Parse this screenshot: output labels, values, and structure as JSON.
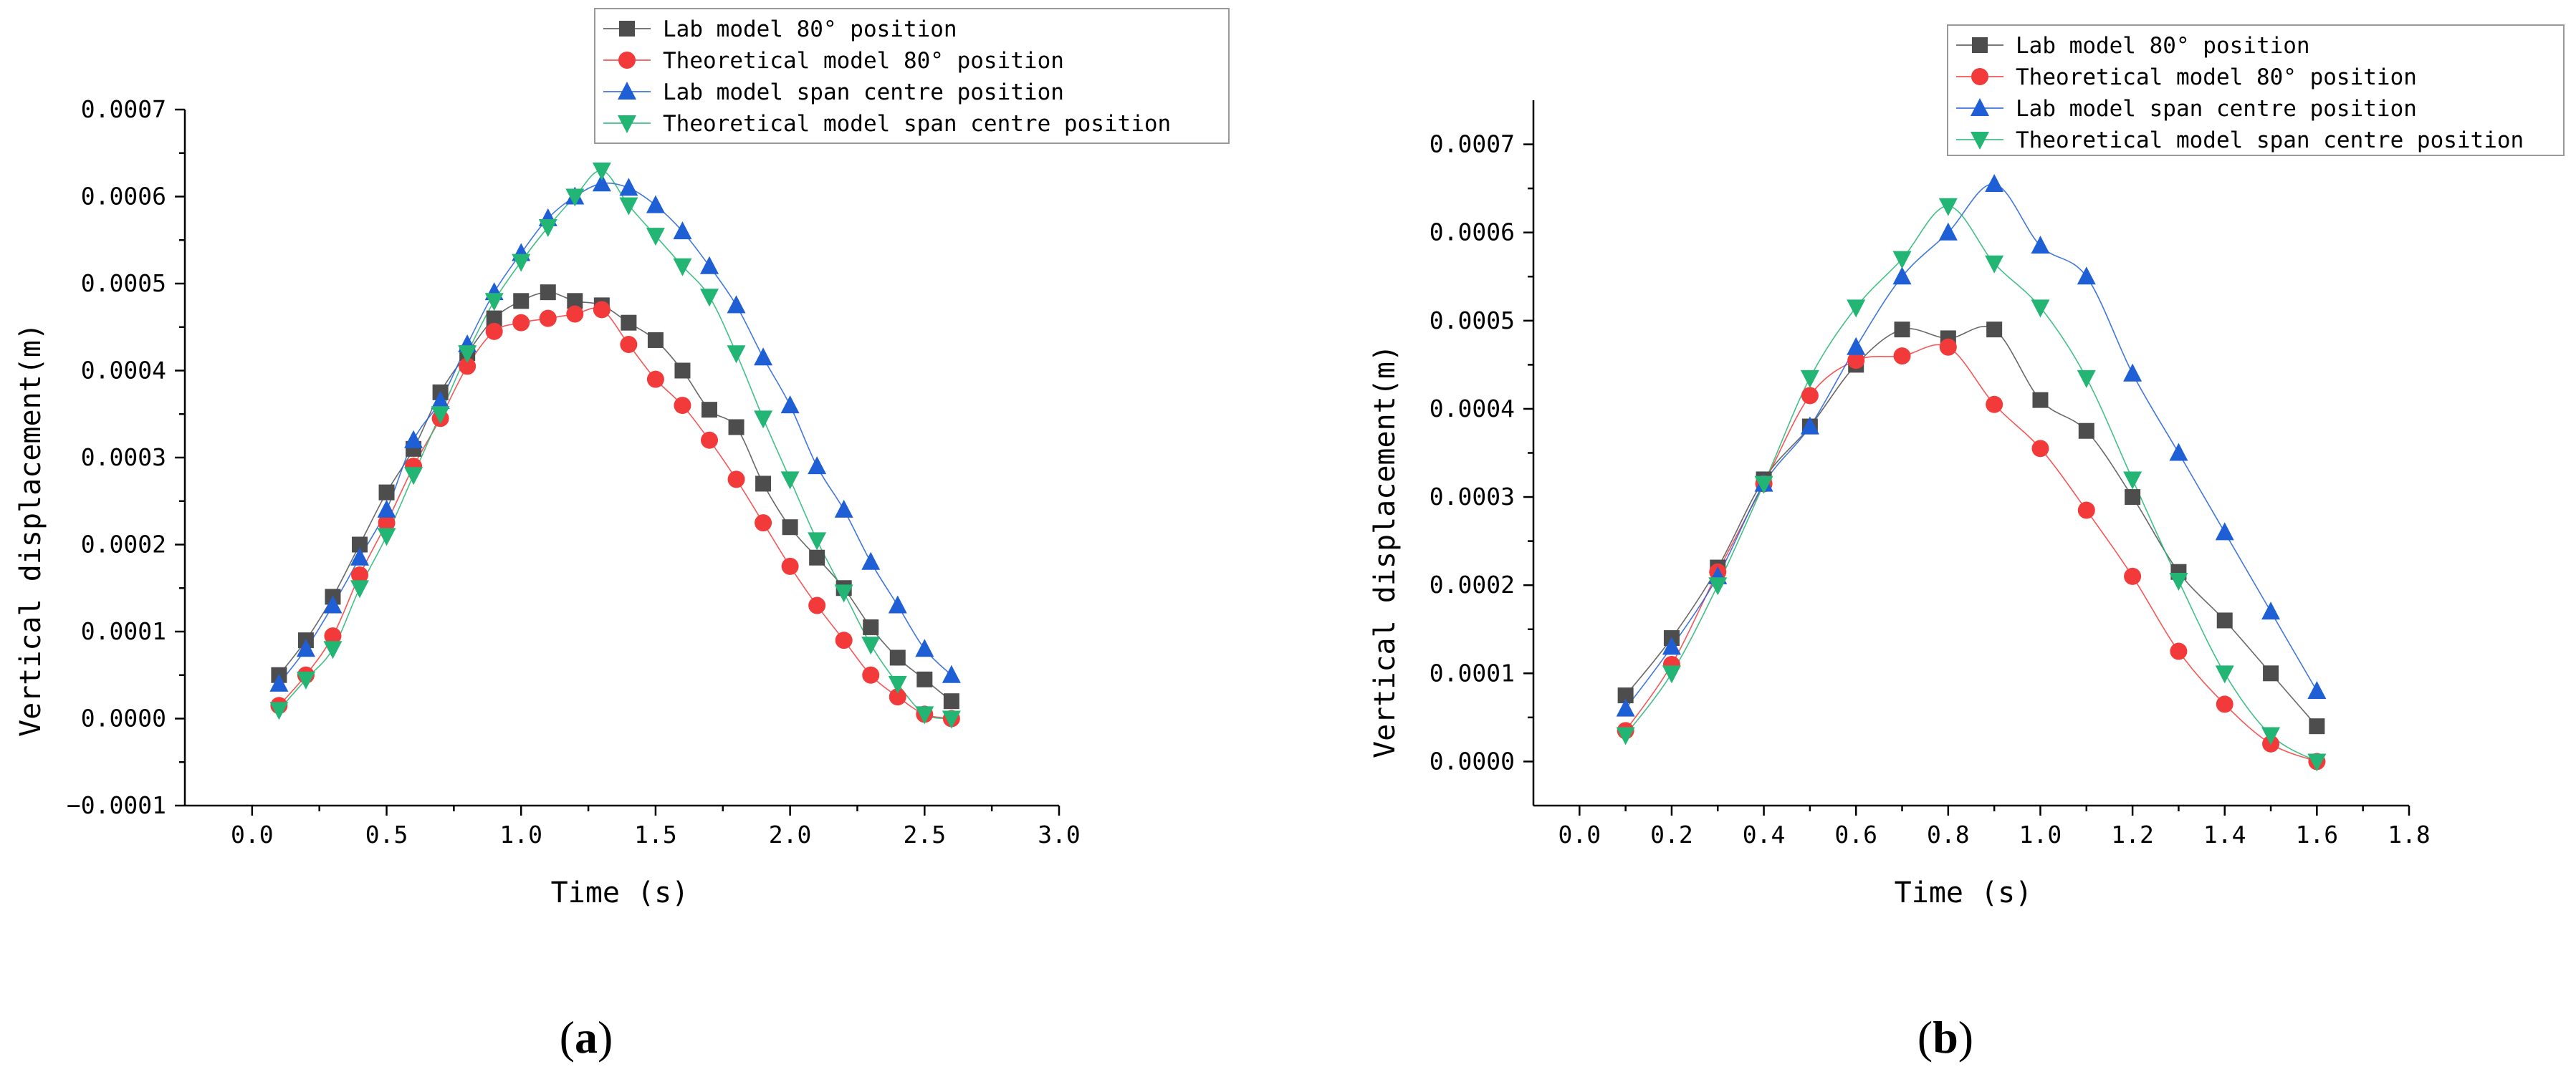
{
  "chart_data": [
    {
      "type": "line",
      "panel_label": {
        "open": "(",
        "letter": "a",
        "close": ")"
      },
      "xlabel": "Time (s)",
      "ylabel": "Vertical displacement(m)",
      "xlim": [
        -0.25,
        3.0
      ],
      "ylim": [
        -0.0001,
        0.0007
      ],
      "xticks": [
        0.0,
        0.5,
        1.0,
        1.5,
        2.0,
        2.5,
        3.0
      ],
      "xtick_labels": [
        "0.0",
        "0.5",
        "1.0",
        "1.5",
        "2.0",
        "2.5",
        "3.0"
      ],
      "yticks": [
        -0.0001,
        0.0,
        0.0001,
        0.0002,
        0.0003,
        0.0004,
        0.0005,
        0.0006,
        0.0007
      ],
      "ytick_labels": [
        "−0.0001",
        "0.0000",
        "0.0001",
        "0.0002",
        "0.0003",
        "0.0004",
        "0.0005",
        "0.0006",
        "0.0007"
      ],
      "legend_position": "top-right",
      "x": [
        0.1,
        0.2,
        0.3,
        0.4,
        0.5,
        0.6,
        0.7,
        0.8,
        0.9,
        1.0,
        1.1,
        1.2,
        1.3,
        1.4,
        1.5,
        1.6,
        1.7,
        1.8,
        1.9,
        2.0,
        2.1,
        2.2,
        2.3,
        2.4,
        2.5,
        2.6
      ],
      "series": [
        {
          "name": "Lab model 80°  position",
          "marker": "square",
          "color": "#4d4d4d",
          "values": [
            5e-05,
            9e-05,
            0.00014,
            0.0002,
            0.00026,
            0.00031,
            0.000375,
            0.00042,
            0.00046,
            0.00048,
            0.00049,
            0.00048,
            0.000475,
            0.000455,
            0.000435,
            0.0004,
            0.000355,
            0.000335,
            0.00027,
            0.00022,
            0.000185,
            0.00015,
            0.000105,
            7e-05,
            4.5e-05,
            2e-05
          ]
        },
        {
          "name": "Theoretical model 80°  position",
          "marker": "circle",
          "color": "#f23a3a",
          "values": [
            1.5e-05,
            5e-05,
            9.5e-05,
            0.000165,
            0.000225,
            0.00029,
            0.000345,
            0.000405,
            0.000445,
            0.000455,
            0.00046,
            0.000465,
            0.00047,
            0.00043,
            0.00039,
            0.00036,
            0.00032,
            0.000275,
            0.000225,
            0.000175,
            0.00013,
            9e-05,
            5e-05,
            2.5e-05,
            5e-06,
            0.0
          ]
        },
        {
          "name": "Lab model span centre position",
          "marker": "triangle-up",
          "color": "#1f5fd6",
          "values": [
            4e-05,
            8e-05,
            0.00013,
            0.000185,
            0.00024,
            0.00032,
            0.000365,
            0.00043,
            0.00049,
            0.000535,
            0.000575,
            0.0006,
            0.000615,
            0.00061,
            0.00059,
            0.00056,
            0.00052,
            0.000475,
            0.000415,
            0.00036,
            0.00029,
            0.00024,
            0.00018,
            0.00013,
            8e-05,
            5e-05
          ]
        },
        {
          "name": "Theoretical model span centre position",
          "marker": "triangle-down",
          "color": "#22b573",
          "values": [
            1e-05,
            4.5e-05,
            8e-05,
            0.00015,
            0.00021,
            0.00028,
            0.00035,
            0.00042,
            0.00048,
            0.000525,
            0.000565,
            0.0006,
            0.00063,
            0.00059,
            0.000555,
            0.00052,
            0.000485,
            0.00042,
            0.000345,
            0.000275,
            0.000205,
            0.000145,
            8.5e-05,
            4e-05,
            5e-06,
            0.0
          ]
        }
      ]
    },
    {
      "type": "line",
      "panel_label": {
        "open": "(",
        "letter": "b",
        "close": ")"
      },
      "xlabel": "Time (s)",
      "ylabel": "Vertical displacement(m)",
      "xlim": [
        -0.1,
        1.8
      ],
      "ylim": [
        -5e-05,
        0.00075
      ],
      "xticks": [
        0.0,
        0.2,
        0.4,
        0.6,
        0.8,
        1.0,
        1.2,
        1.4,
        1.6,
        1.8
      ],
      "xtick_labels": [
        "0.0",
        "0.2",
        "0.4",
        "0.6",
        "0.8",
        "1.0",
        "1.2",
        "1.4",
        "1.6",
        "1.8"
      ],
      "yticks": [
        0.0,
        0.0001,
        0.0002,
        0.0003,
        0.0004,
        0.0005,
        0.0006,
        0.0007
      ],
      "ytick_labels": [
        "0.0000",
        "0.0001",
        "0.0002",
        "0.0003",
        "0.0004",
        "0.0005",
        "0.0006",
        "0.0007"
      ],
      "legend_position": "top-right",
      "x": [
        0.1,
        0.2,
        0.3,
        0.4,
        0.5,
        0.6,
        0.7,
        0.8,
        0.9,
        1.0,
        1.1,
        1.2,
        1.3,
        1.4,
        1.5,
        1.6
      ],
      "series": [
        {
          "name": "Lab model 80°  position",
          "marker": "square",
          "color": "#4d4d4d",
          "values": [
            7.5e-05,
            0.00014,
            0.00022,
            0.00032,
            0.00038,
            0.00045,
            0.00049,
            0.00048,
            0.00049,
            0.00041,
            0.000375,
            0.0003,
            0.000215,
            0.00016,
            0.0001,
            4e-05
          ]
        },
        {
          "name": "Theoretical model 80°  position",
          "marker": "circle",
          "color": "#f23a3a",
          "values": [
            3.5e-05,
            0.00011,
            0.000215,
            0.000315,
            0.000415,
            0.000455,
            0.00046,
            0.00047,
            0.000405,
            0.000355,
            0.000285,
            0.00021,
            0.000125,
            6.5e-05,
            2e-05,
            0.0
          ]
        },
        {
          "name": "Lab model span centre position",
          "marker": "triangle-up",
          "color": "#1f5fd6",
          "values": [
            6e-05,
            0.00013,
            0.00021,
            0.000315,
            0.00038,
            0.00047,
            0.00055,
            0.0006,
            0.000655,
            0.000585,
            0.00055,
            0.00044,
            0.00035,
            0.00026,
            0.00017,
            8e-05
          ]
        },
        {
          "name": "Theoretical model span centre position",
          "marker": "triangle-down",
          "color": "#22b573",
          "values": [
            3e-05,
            0.0001,
            0.0002,
            0.000315,
            0.000435,
            0.000515,
            0.00057,
            0.00063,
            0.000565,
            0.000515,
            0.000435,
            0.00032,
            0.000205,
            0.0001,
            3e-05,
            0.0
          ]
        }
      ]
    }
  ]
}
